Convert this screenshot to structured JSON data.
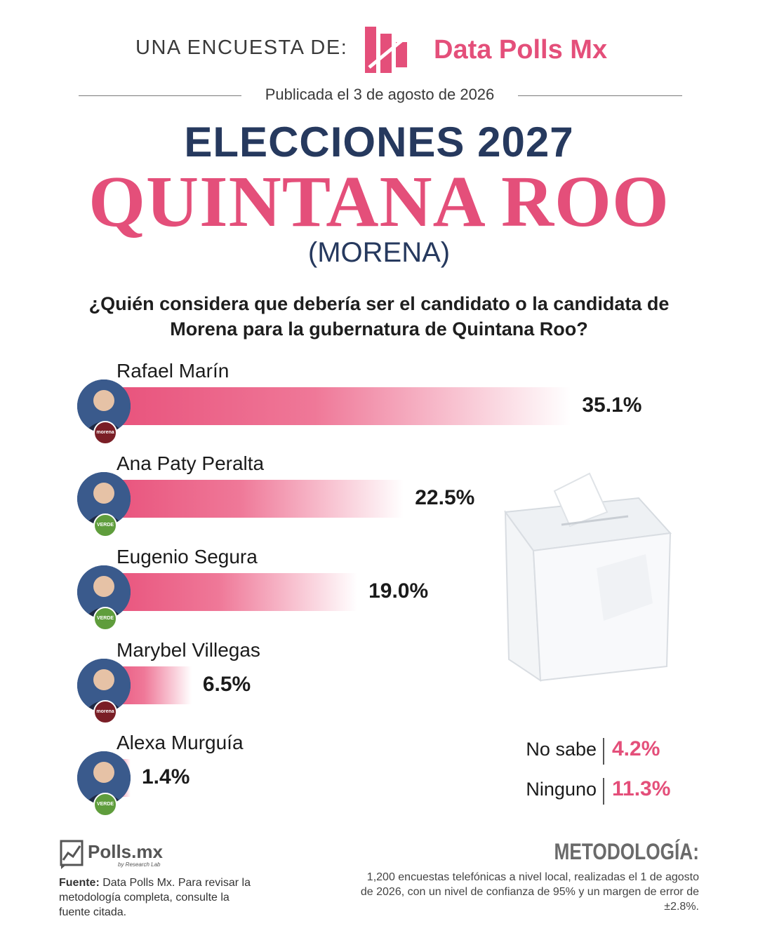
{
  "header": {
    "survey_by_label": "UNA ENCUESTA DE:",
    "brand_name": "Data Polls Mx",
    "published": "Publicada el 3 de agosto de 2026",
    "title": "ELECCIONES 2027",
    "state": "QUINTANA ROO",
    "party": "(MORENA)",
    "question": "¿Quién considera que debería ser el candidato o la candidata de Morena para la gubernatura de Quintana Roo?"
  },
  "colors": {
    "accent": "#e44f7a",
    "navy": "#26395e",
    "morena": "#7a1e26",
    "verde": "#5f9d3c"
  },
  "chart_data": {
    "type": "bar",
    "orientation": "horizontal",
    "categories": [
      "Rafael Marín",
      "Ana Paty Peralta",
      "Eugenio Segura",
      "Marybel Villegas",
      "Alexa Murguía"
    ],
    "values": [
      35.1,
      22.5,
      19.0,
      6.5,
      1.4
    ],
    "value_labels": [
      "35.1%",
      "22.5%",
      "19.0%",
      "6.5%",
      "1.4%"
    ],
    "party_badges": [
      "morena",
      "VERDE",
      "VERDE",
      "morena",
      "VERDE"
    ],
    "other_responses": [
      {
        "label": "No sabe",
        "value": 4.2,
        "value_label": "4.2%"
      },
      {
        "label": "Ninguno",
        "value": 11.3,
        "value_label": "11.3%"
      }
    ]
  },
  "footer": {
    "polls_brand": "Polls.mx",
    "polls_sub": "by Research Lab",
    "source_label": "Fuente:",
    "source_text": " Data Polls Mx. Para revisar la metodología completa, consulte la fuente citada.",
    "method_title": "METODOLOGÍA:",
    "method_text": "1,200 encuestas telefónicas a nivel local, realizadas el 1 de agosto de 2026, con un nivel de confianza de 95% y un margen de error de ±2.8%."
  }
}
